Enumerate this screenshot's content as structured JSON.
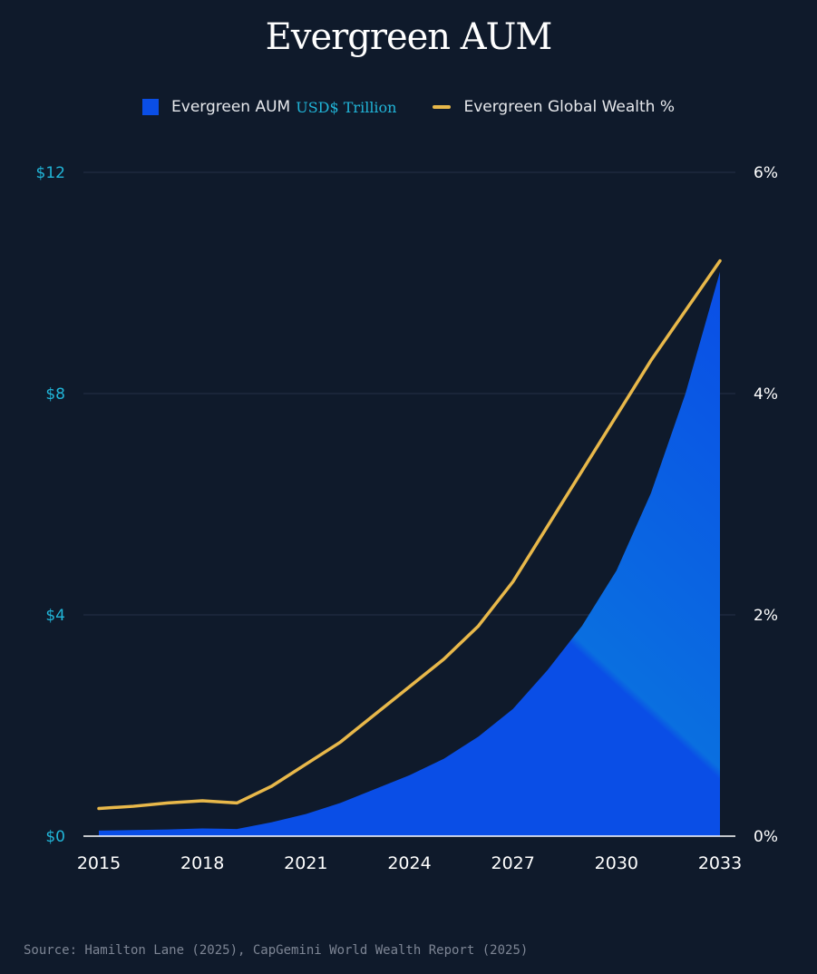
{
  "title": "Evergreen AUM",
  "legend": {
    "aum_label": "Evergreen AUM",
    "aum_unit": "USD$ Trillion",
    "wealth_label": "Evergreen Global Wealth %"
  },
  "source": "Source: Hamilton Lane (2025), CapGemini World Wealth Report (2025)",
  "colors": {
    "background": "#0f1a2b",
    "aum_fill": "#0a4ee6",
    "aum_fill_highlight": "#0a6fe0",
    "wealth_line": "#e8b84a",
    "left_axis_text": "#21b5d8",
    "right_axis_text": "#ffffff",
    "grid": "#243047",
    "source_text": "#7d8594"
  },
  "chart_data": {
    "type": "area",
    "x": [
      2015,
      2016,
      2017,
      2018,
      2019,
      2020,
      2021,
      2022,
      2023,
      2024,
      2025,
      2026,
      2027,
      2028,
      2029,
      2030,
      2031,
      2032,
      2033
    ],
    "series": [
      {
        "name": "Evergreen AUM",
        "axis": "left",
        "unit": "USD$ Trillion",
        "type": "area",
        "values": [
          0.1,
          0.11,
          0.12,
          0.14,
          0.13,
          0.25,
          0.4,
          0.6,
          0.85,
          1.1,
          1.4,
          1.8,
          2.3,
          3.0,
          3.8,
          4.8,
          6.2,
          8.0,
          10.2
        ]
      },
      {
        "name": "Evergreen Global Wealth %",
        "axis": "right",
        "unit": "%",
        "type": "line",
        "values": [
          0.25,
          0.27,
          0.3,
          0.32,
          0.3,
          0.45,
          0.65,
          0.85,
          1.1,
          1.35,
          1.6,
          1.9,
          2.3,
          2.8,
          3.3,
          3.8,
          4.3,
          4.75,
          5.2
        ]
      }
    ],
    "x_ticks": [
      "2015",
      "2018",
      "2021",
      "2024",
      "2027",
      "2030",
      "2033"
    ],
    "y_left": {
      "ticks": [
        "$0",
        "$4",
        "$8",
        "$12"
      ],
      "range": [
        0,
        12
      ]
    },
    "y_right": {
      "ticks": [
        "0%",
        "2%",
        "4%",
        "6%"
      ],
      "range": [
        0,
        6
      ]
    },
    "grid": true,
    "legend_position": "top-center"
  }
}
